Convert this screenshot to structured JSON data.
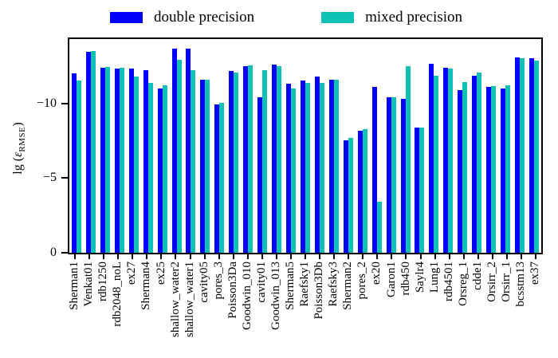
{
  "axis": {
    "ylabel_prefix": "lg (",
    "ylabel_epsilon": "ε",
    "ylabel_sub": "RMSE",
    "ylabel_suffix": ")"
  },
  "chart_data": {
    "type": "bar",
    "title": "",
    "xlabel": "",
    "ylabel": "lg(ε_RMSE)",
    "ylim": [
      0,
      -14.3
    ],
    "grid": false,
    "legend_position": "top",
    "yticks": [
      {
        "value": 0,
        "label": "0"
      },
      {
        "value": -5,
        "label": "−5"
      },
      {
        "value": -10,
        "label": "−10"
      }
    ],
    "categories": [
      "Sherman1",
      "Venkat01",
      "rdb1250",
      "rdb2048_noL",
      "ex27",
      "Sherman4",
      "ex25",
      "shallow_water2",
      "shallow_water1",
      "cavity05",
      "pores_3",
      "Poisson3Da",
      "Goodwin_010",
      "cavity01",
      "Goodwin_013",
      "Sherman5",
      "Raefsky1",
      "Poisson3Db",
      "Raefsky3",
      "Sherman2",
      "pores_2",
      "ex20",
      "Garon1",
      "rdb450",
      "Saylr4",
      "Lung1",
      "rdb4501",
      "Orsreg_1",
      "cdde1",
      "Orsirr_2",
      "Orsirr_1",
      "bcsstm13",
      "ex37"
    ],
    "series": [
      {
        "name": "double precision",
        "color": "#0000FE",
        "values": [
          -12.0,
          -13.45,
          -12.4,
          -12.35,
          -12.35,
          -12.2,
          -11.0,
          -13.65,
          -13.65,
          -11.6,
          -9.95,
          -12.15,
          -12.5,
          -10.4,
          -12.6,
          -11.3,
          -11.55,
          -11.8,
          -11.6,
          -7.55,
          -8.15,
          -11.1,
          -10.4,
          -10.3,
          -8.4,
          -12.65,
          -12.4,
          -10.9,
          -11.85,
          -11.1,
          -11.0,
          -13.1,
          -13.0
        ]
      },
      {
        "name": "mixed precision",
        "color": "#0FC0B5",
        "values": [
          -11.5,
          -13.5,
          -12.45,
          -12.4,
          -11.8,
          -11.35,
          -11.2,
          -12.9,
          -12.2,
          -11.6,
          -10.05,
          -12.05,
          -12.55,
          -12.2,
          -12.5,
          -11.0,
          -11.35,
          -11.35,
          -11.6,
          -7.7,
          -8.25,
          -3.4,
          -10.4,
          -12.5,
          -8.4,
          -11.85,
          -12.35,
          -11.4,
          -12.05,
          -11.15,
          -11.2,
          -13.0,
          -12.85
        ]
      }
    ]
  }
}
